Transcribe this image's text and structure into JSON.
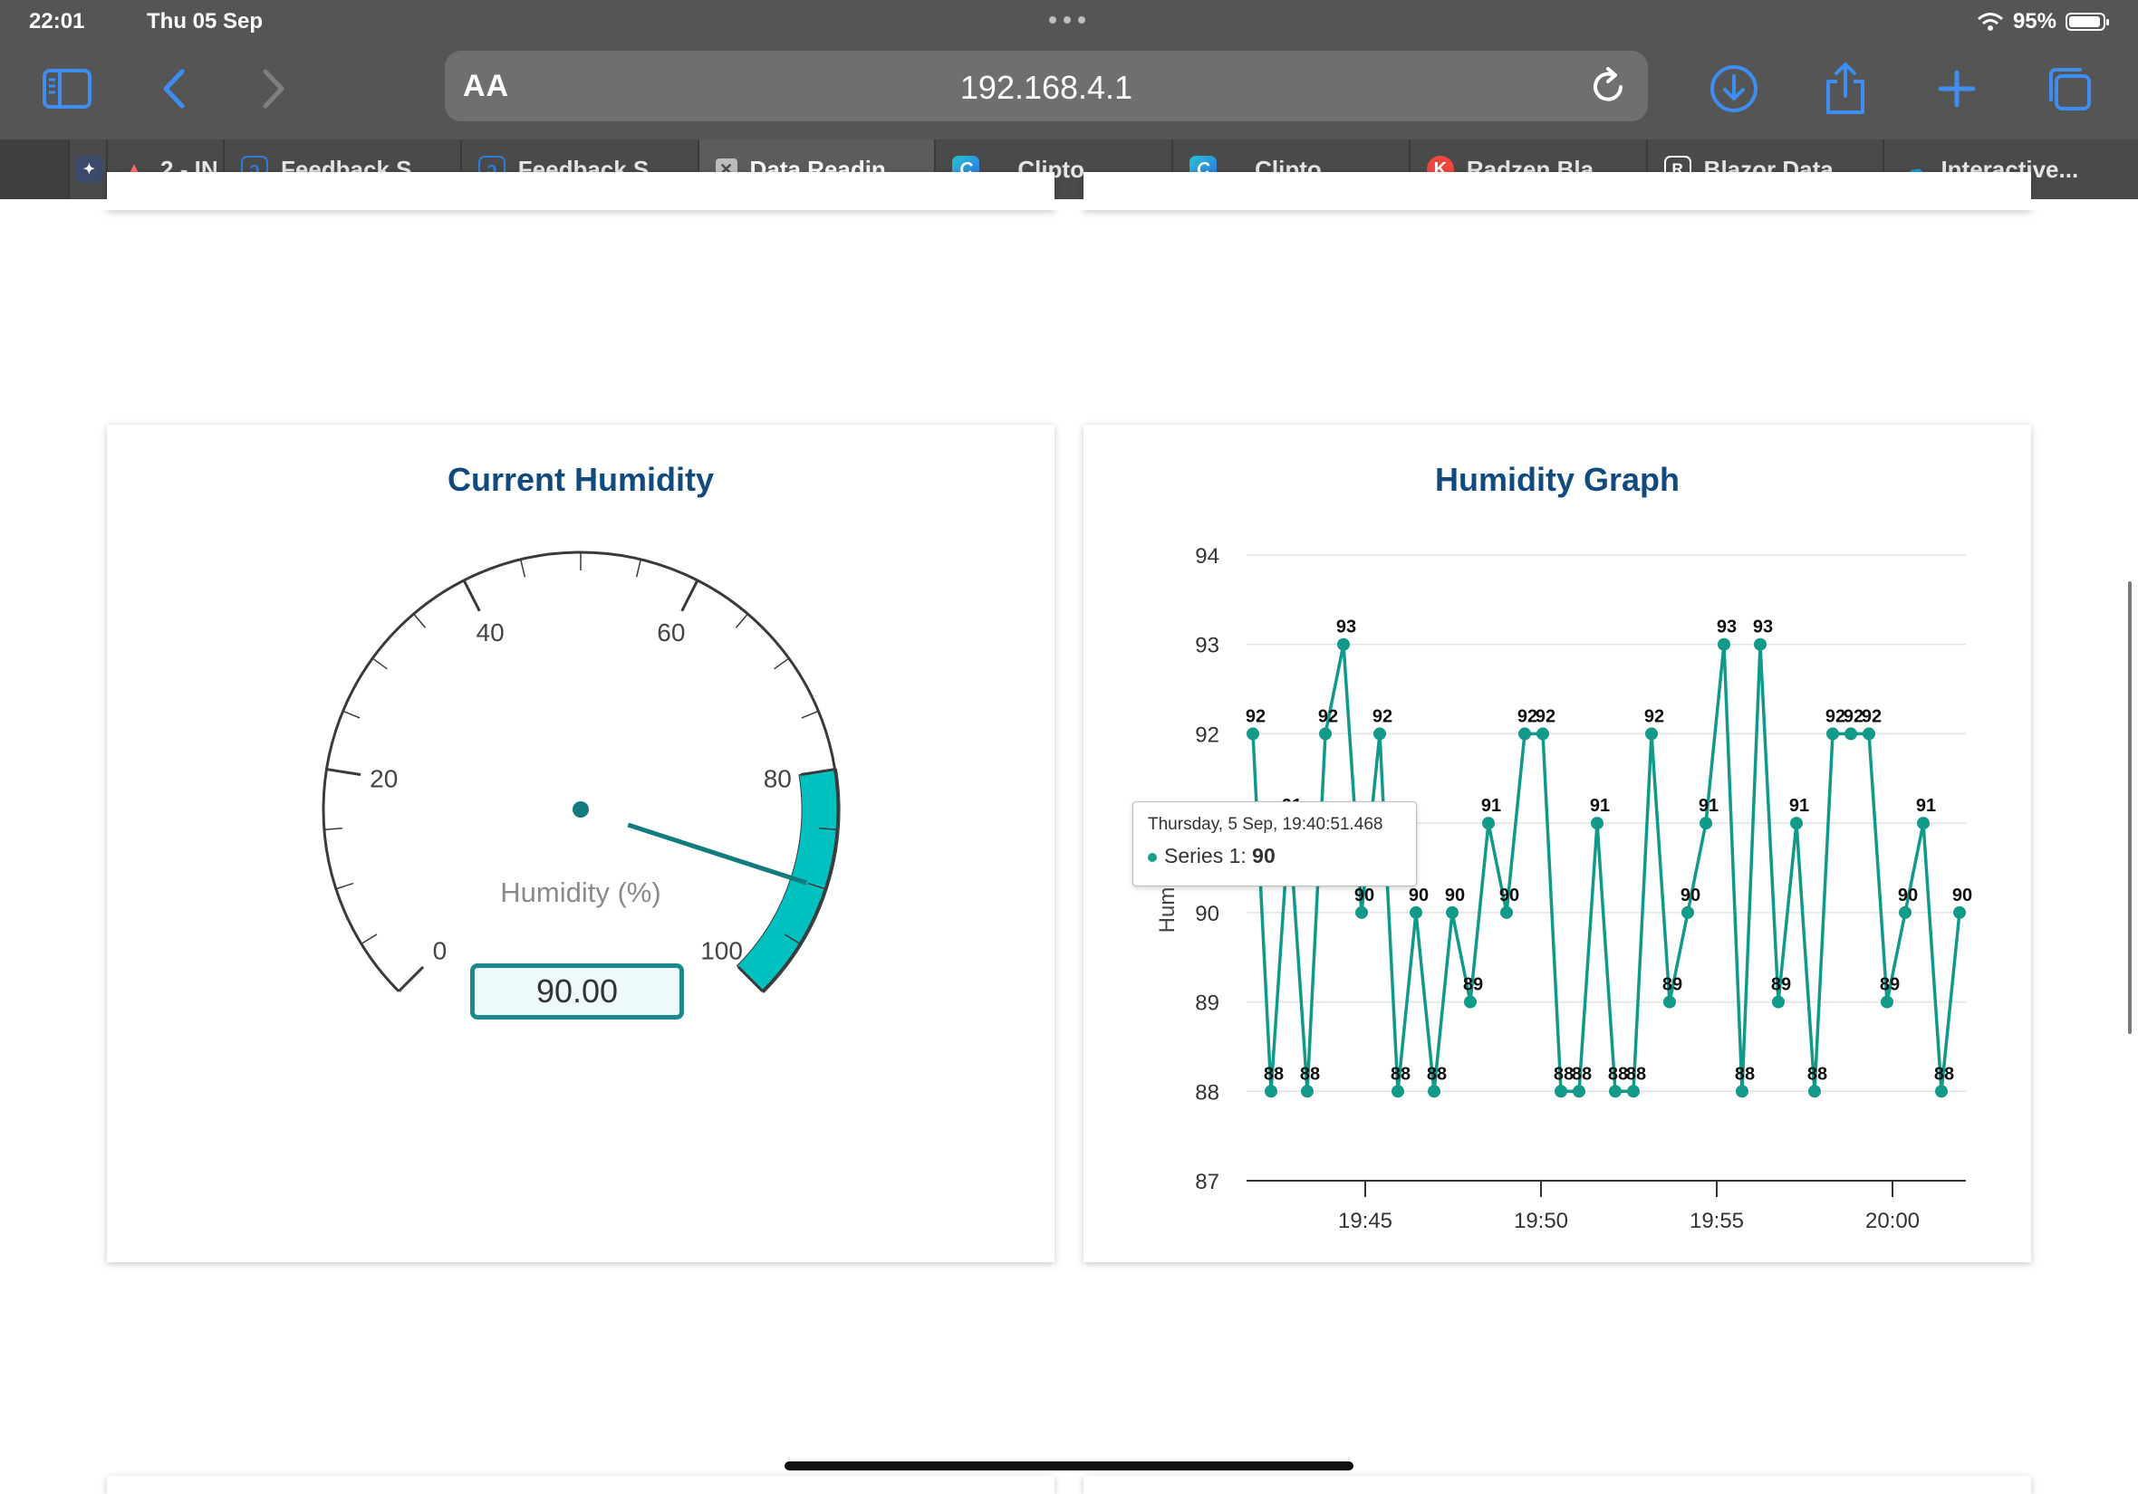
{
  "status_bar": {
    "time": "22:01",
    "date": "Thu 05 Sep",
    "battery": "95%"
  },
  "browser": {
    "text_size_label": "AA",
    "url": "192.168.4.1",
    "tabs": [
      {
        "label": "",
        "icon": "shield-icon"
      },
      {
        "label": "2 - IN",
        "icon": "app-icon"
      },
      {
        "label": "Feedback S...",
        "icon": "feedback-icon"
      },
      {
        "label": "Feedback S...",
        "icon": "feedback-icon"
      },
      {
        "label": "Data Readin...",
        "icon": "close-icon",
        "active": true
      },
      {
        "label": "Clipto",
        "icon": "clipto-icon"
      },
      {
        "label": "Clipto",
        "icon": "clipto-icon"
      },
      {
        "label": "Radzen Bla...",
        "icon": "radzen-icon"
      },
      {
        "label": "Blazor Data...",
        "icon": "r-icon"
      },
      {
        "label": "Interactive...",
        "icon": "cloud-icon"
      }
    ]
  },
  "gauge": {
    "title": "Current Humidity",
    "label": "Humidity (%)",
    "value": 90,
    "value_text": "90.00",
    "ticks": [
      "0",
      "20",
      "40",
      "60",
      "80",
      "100"
    ],
    "min": 0,
    "max": 100,
    "band_from": 80,
    "band_to": 100,
    "band_color": "#00c0c0"
  },
  "chart": {
    "title": "Humidity Graph",
    "chart_data": {
      "type": "line",
      "ylabel": "Hum",
      "ylim": [
        87,
        94
      ],
      "yticks": [
        "87",
        "88",
        "89",
        "90",
        "91",
        "92",
        "93",
        "94"
      ],
      "xticks": [
        "19:45",
        "19:50",
        "19:55",
        "20:00"
      ],
      "grid": true,
      "series": [
        {
          "color": "#11998a",
          "values": [
            92,
            88,
            91,
            88,
            92,
            93,
            90,
            92,
            88,
            90,
            88,
            90,
            89,
            91,
            90,
            92,
            92,
            88,
            88,
            91,
            88,
            88,
            92,
            89,
            90,
            91,
            93,
            88,
            93,
            89,
            91,
            88,
            92,
            92,
            92,
            89,
            90,
            91,
            88,
            90
          ]
        }
      ]
    },
    "tooltip": {
      "date": "Thursday, 5 Sep, 19:40:51.468",
      "series": "Series 1:",
      "value": "90"
    }
  }
}
